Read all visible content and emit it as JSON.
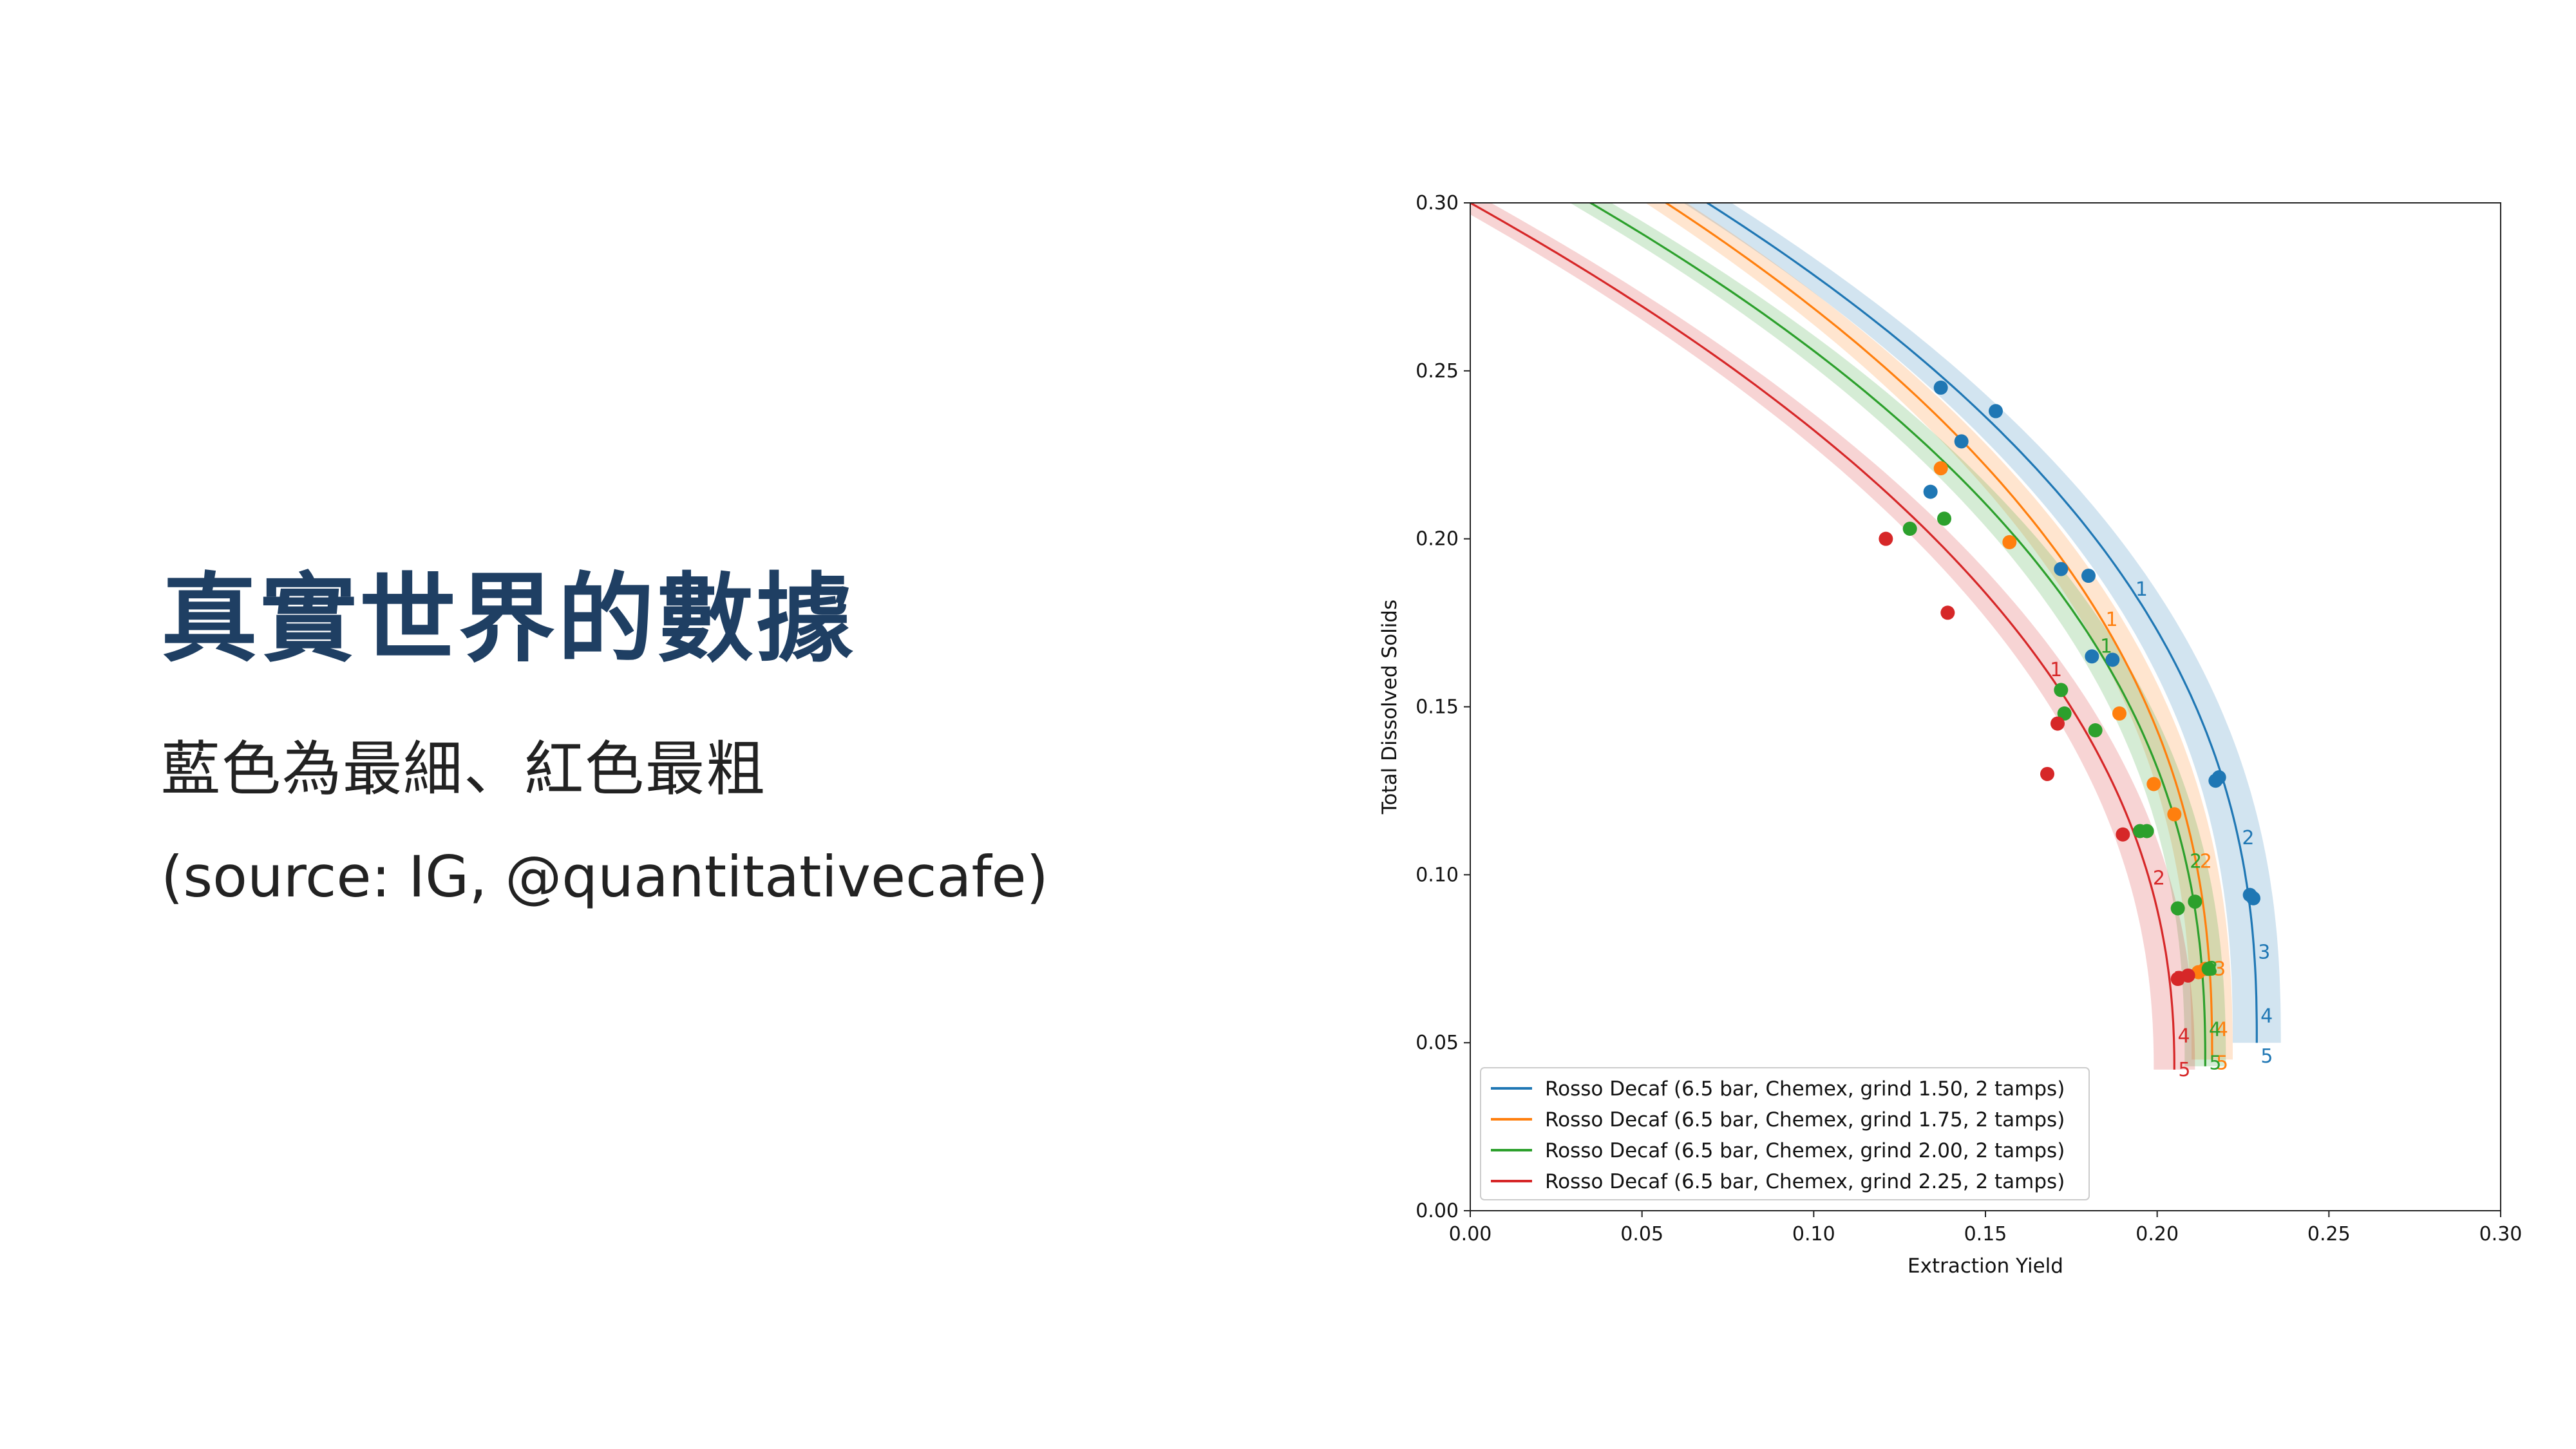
{
  "slide": {
    "title": "真實世界的數據",
    "subtitle": "藍色為最細、紅色最粗",
    "source": "(source: IG, @quantitativecafe)"
  },
  "chart_data": {
    "type": "scatter",
    "xlabel": "Extraction Yield",
    "ylabel": "Total Dissolved Solids",
    "xlim": [
      0,
      0.3
    ],
    "ylim": [
      0,
      0.3
    ],
    "xticks": [
      "0.00",
      "0.05",
      "0.10",
      "0.15",
      "0.20",
      "0.25",
      "0.30"
    ],
    "yticks": [
      "0.00",
      "0.05",
      "0.10",
      "0.15",
      "0.20",
      "0.25",
      "0.30"
    ],
    "legend_position": "lower-left",
    "grid": false,
    "series": [
      {
        "name": "Rosso Decaf (6.5 bar, Chemex, grind 1.50, 2 tamps)",
        "color": "#1f77b4",
        "curve": {
          "x0": 0.229,
          "y0": 0.05,
          "x_end": 0.069,
          "y_end": 0.3,
          "exponent": 2.4,
          "band": 0.007
        },
        "points": [
          [
            0.137,
            0.245
          ],
          [
            0.153,
            0.238
          ],
          [
            0.143,
            0.229
          ],
          [
            0.134,
            0.214
          ],
          [
            0.18,
            0.189
          ],
          [
            0.172,
            0.191
          ],
          [
            0.181,
            0.165
          ],
          [
            0.187,
            0.164
          ],
          [
            0.217,
            0.128
          ],
          [
            0.218,
            0.129
          ],
          [
            0.227,
            0.094
          ],
          [
            0.228,
            0.093
          ]
        ],
        "labels": [
          {
            "text": "1",
            "y": 0.185
          },
          {
            "text": "2",
            "y": 0.111
          },
          {
            "text": "3",
            "y": 0.077
          },
          {
            "text": "4",
            "y": 0.058
          },
          {
            "text": "5",
            "y": 0.046
          }
        ]
      },
      {
        "name": "Rosso Decaf (6.5 bar, Chemex, grind 1.75, 2 tamps)",
        "color": "#ff7f0e",
        "curve": {
          "x0": 0.216,
          "y0": 0.045,
          "x_end": 0.057,
          "y_end": 0.3,
          "exponent": 2.4,
          "band": 0.006
        },
        "points": [
          [
            0.137,
            0.221
          ],
          [
            0.157,
            0.199
          ],
          [
            0.189,
            0.148
          ],
          [
            0.199,
            0.127
          ],
          [
            0.205,
            0.118
          ],
          [
            0.212,
            0.071
          ],
          [
            0.214,
            0.072
          ]
        ],
        "labels": [
          {
            "text": "1",
            "y": 0.176
          },
          {
            "text": "2",
            "y": 0.104
          },
          {
            "text": "3",
            "y": 0.072
          },
          {
            "text": "4",
            "y": 0.054
          },
          {
            "text": "5",
            "y": 0.044
          }
        ]
      },
      {
        "name": "Rosso Decaf (6.5 bar, Chemex, grind 2.00, 2 tamps)",
        "color": "#2ca02c",
        "curve": {
          "x0": 0.214,
          "y0": 0.043,
          "x_end": 0.035,
          "y_end": 0.3,
          "exponent": 2.4,
          "band": 0.006
        },
        "points": [
          [
            0.128,
            0.203
          ],
          [
            0.138,
            0.206
          ],
          [
            0.172,
            0.155
          ],
          [
            0.173,
            0.148
          ],
          [
            0.182,
            0.143
          ],
          [
            0.195,
            0.113
          ],
          [
            0.197,
            0.113
          ],
          [
            0.206,
            0.09
          ],
          [
            0.211,
            0.092
          ],
          [
            0.215,
            0.072
          ]
        ],
        "labels": [
          {
            "text": "1",
            "y": 0.168
          },
          {
            "text": "2",
            "y": 0.104
          },
          {
            "text": "3",
            "y": 0.072
          },
          {
            "text": "4",
            "y": 0.054
          },
          {
            "text": "5",
            "y": 0.044
          }
        ]
      },
      {
        "name": "Rosso Decaf (6.5 bar, Chemex, grind 2.25, 2 tamps)",
        "color": "#d62728",
        "curve": {
          "x0": 0.205,
          "y0": 0.042,
          "x_end": 0.0,
          "y_end": 0.3,
          "exponent": 2.2,
          "band": 0.006
        },
        "points": [
          [
            0.121,
            0.2
          ],
          [
            0.139,
            0.178
          ],
          [
            0.171,
            0.145
          ],
          [
            0.168,
            0.13
          ],
          [
            0.19,
            0.112
          ],
          [
            0.206,
            0.069
          ],
          [
            0.209,
            0.07
          ]
        ],
        "labels": [
          {
            "text": "1",
            "y": 0.161
          },
          {
            "text": "2",
            "y": 0.099
          },
          {
            "text": "3",
            "y": 0.069
          },
          {
            "text": "4",
            "y": 0.052
          },
          {
            "text": "5",
            "y": 0.042
          }
        ]
      }
    ]
  }
}
